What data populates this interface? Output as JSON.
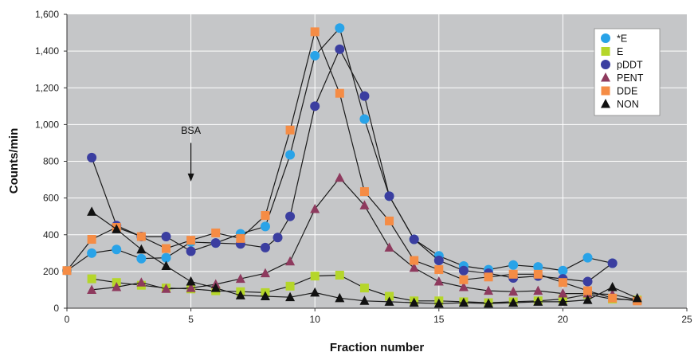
{
  "chart_data": {
    "type": "line",
    "title": "",
    "xlabel": "Fraction number",
    "ylabel": "Counts/min",
    "xlim": [
      0,
      25
    ],
    "ylim": [
      0,
      1600
    ],
    "xticks": [
      "0",
      "5",
      "10",
      "15",
      "20",
      "25"
    ],
    "yticks": [
      "0",
      "200",
      "400",
      "600",
      "800",
      "1,000",
      "1,200",
      "1,400",
      "1,600"
    ],
    "grid": true,
    "legend_position": "top-right",
    "plot_background": "#c5c6c8",
    "annotation": {
      "text": "BSA",
      "x": 5,
      "y_text": 950,
      "arrow_from": 900,
      "arrow_to": 690
    },
    "series": [
      {
        "name": "*E",
        "marker": "circle",
        "color": "#29a3e8",
        "points": [
          [
            0,
            205
          ],
          [
            1,
            300
          ],
          [
            2,
            320
          ],
          [
            3,
            270
          ],
          [
            4,
            275
          ],
          [
            5,
            360
          ],
          [
            6,
            355
          ],
          [
            7,
            405
          ],
          [
            8,
            445
          ],
          [
            9,
            835
          ],
          [
            10,
            1375
          ],
          [
            11,
            1525
          ],
          [
            12,
            1030
          ],
          [
            13,
            610
          ],
          [
            14,
            375
          ],
          [
            15,
            285
          ],
          [
            16,
            230
          ],
          [
            17,
            210
          ],
          [
            18,
            235
          ],
          [
            19,
            225
          ],
          [
            20,
            205
          ],
          [
            21,
            275
          ],
          [
            22,
            245
          ]
        ]
      },
      {
        "name": "E",
        "marker": "square",
        "color": "#b5d62a",
        "points": [
          [
            1,
            160
          ],
          [
            2,
            140
          ],
          [
            3,
            125
          ],
          [
            4,
            110
          ],
          [
            5,
            105
          ],
          [
            6,
            95
          ],
          [
            7,
            90
          ],
          [
            8,
            85
          ],
          [
            9,
            120
          ],
          [
            10,
            175
          ],
          [
            11,
            180
          ],
          [
            12,
            110
          ],
          [
            13,
            65
          ],
          [
            14,
            40
          ],
          [
            15,
            40
          ],
          [
            16,
            35
          ],
          [
            17,
            30
          ],
          [
            18,
            35
          ],
          [
            19,
            40
          ],
          [
            20,
            50
          ],
          [
            21,
            75
          ],
          [
            22,
            50
          ],
          [
            23,
            45
          ]
        ]
      },
      {
        "name": "pDDT",
        "marker": "circle",
        "color": "#3b3ea0",
        "points": [
          [
            1,
            820
          ],
          [
            2,
            450
          ],
          [
            3,
            390
          ],
          [
            4,
            390
          ],
          [
            5,
            310
          ],
          [
            6,
            355
          ],
          [
            7,
            350
          ],
          [
            8,
            330
          ],
          [
            8.5,
            385
          ],
          [
            9,
            500
          ],
          [
            10,
            1100
          ],
          [
            11,
            1410
          ],
          [
            12,
            1155
          ],
          [
            13,
            610
          ],
          [
            14,
            375
          ],
          [
            15,
            260
          ],
          [
            16,
            205
          ],
          [
            17,
            190
          ],
          [
            18,
            165
          ],
          [
            19,
            175
          ],
          [
            20,
            160
          ],
          [
            21,
            145
          ],
          [
            22,
            245
          ]
        ]
      },
      {
        "name": "PENT",
        "marker": "triangle",
        "color": "#8e3a5e",
        "points": [
          [
            1,
            100
          ],
          [
            2,
            115
          ],
          [
            3,
            140
          ],
          [
            4,
            105
          ],
          [
            5,
            110
          ],
          [
            6,
            130
          ],
          [
            7,
            160
          ],
          [
            8,
            190
          ],
          [
            9,
            255
          ],
          [
            10,
            540
          ],
          [
            11,
            710
          ],
          [
            12,
            560
          ],
          [
            13,
            330
          ],
          [
            14,
            220
          ],
          [
            15,
            145
          ],
          [
            16,
            115
          ],
          [
            17,
            95
          ],
          [
            18,
            90
          ],
          [
            19,
            95
          ],
          [
            20,
            80
          ],
          [
            21,
            80
          ],
          [
            22,
            75
          ],
          [
            23,
            45
          ]
        ]
      },
      {
        "name": "DDE",
        "marker": "square",
        "color": "#f58c45",
        "points": [
          [
            0,
            205
          ],
          [
            1,
            375
          ],
          [
            2,
            440
          ],
          [
            3,
            390
          ],
          [
            4,
            325
          ],
          [
            5,
            370
          ],
          [
            6,
            410
          ],
          [
            7,
            380
          ],
          [
            8,
            505
          ],
          [
            9,
            970
          ],
          [
            10,
            1505
          ],
          [
            11,
            1170
          ],
          [
            12,
            635
          ],
          [
            13,
            475
          ],
          [
            14,
            260
          ],
          [
            15,
            210
          ],
          [
            16,
            155
          ],
          [
            17,
            170
          ],
          [
            18,
            185
          ],
          [
            19,
            185
          ],
          [
            20,
            140
          ],
          [
            21,
            95
          ],
          [
            22,
            55
          ],
          [
            23,
            40
          ]
        ]
      },
      {
        "name": "NON",
        "marker": "triangle",
        "color": "#111111",
        "points": [
          [
            1,
            525
          ],
          [
            2,
            430
          ],
          [
            3,
            320
          ],
          [
            4,
            230
          ],
          [
            5,
            145
          ],
          [
            6,
            110
          ],
          [
            7,
            70
          ],
          [
            8,
            65
          ],
          [
            9,
            60
          ],
          [
            10,
            85
          ],
          [
            11,
            55
          ],
          [
            12,
            40
          ],
          [
            13,
            35
          ],
          [
            14,
            30
          ],
          [
            15,
            25
          ],
          [
            16,
            30
          ],
          [
            17,
            25
          ],
          [
            18,
            30
          ],
          [
            19,
            35
          ],
          [
            20,
            35
          ],
          [
            21,
            45
          ],
          [
            22,
            115
          ],
          [
            23,
            55
          ]
        ]
      }
    ]
  }
}
